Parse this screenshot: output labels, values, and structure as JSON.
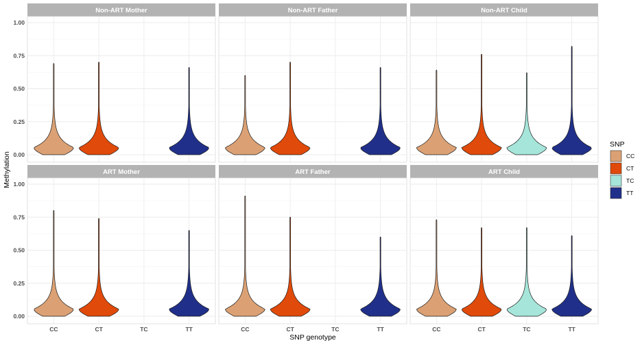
{
  "chart_data": {
    "type": "violin",
    "xlabel": "SNP genotype",
    "ylabel": "Methylation",
    "ylim": [
      0,
      1
    ],
    "y_ticks": [
      "0.00",
      "0.25",
      "0.50",
      "0.75",
      "1.00"
    ],
    "categories": [
      "CC",
      "CT",
      "TC",
      "TT"
    ],
    "legend": {
      "title": "SNP",
      "placement": "right",
      "entries": [
        "CC",
        "CT",
        "TC",
        "TT"
      ]
    },
    "colors": {
      "CC": "#DBA174",
      "CT": "#E04A0A",
      "TC": "#A6E5DA",
      "TT": "#20308A"
    },
    "panels": [
      {
        "title": "Non-ART Mother",
        "violins": [
          {
            "genotype": "CC",
            "max": 0.69
          },
          {
            "genotype": "CT",
            "max": 0.7
          },
          {
            "genotype": "TT",
            "max": 0.66
          }
        ]
      },
      {
        "title": "Non-ART Father",
        "violins": [
          {
            "genotype": "CC",
            "max": 0.6
          },
          {
            "genotype": "CT",
            "max": 0.7
          },
          {
            "genotype": "TT",
            "max": 0.66
          }
        ]
      },
      {
        "title": "Non-ART Child",
        "violins": [
          {
            "genotype": "CC",
            "max": 0.64
          },
          {
            "genotype": "CT",
            "max": 0.76
          },
          {
            "genotype": "TC",
            "max": 0.62
          },
          {
            "genotype": "TT",
            "max": 0.82
          }
        ]
      },
      {
        "title": "ART Mother",
        "violins": [
          {
            "genotype": "CC",
            "max": 0.8
          },
          {
            "genotype": "CT",
            "max": 0.74
          },
          {
            "genotype": "TT",
            "max": 0.65
          }
        ]
      },
      {
        "title": "ART Father",
        "violins": [
          {
            "genotype": "CC",
            "max": 0.91
          },
          {
            "genotype": "CT",
            "max": 0.75
          },
          {
            "genotype": "TT",
            "max": 0.6
          }
        ]
      },
      {
        "title": "ART Child",
        "violins": [
          {
            "genotype": "CC",
            "max": 0.73
          },
          {
            "genotype": "CT",
            "max": 0.67
          },
          {
            "genotype": "TC",
            "max": 0.67
          },
          {
            "genotype": "TT",
            "max": 0.61
          }
        ]
      }
    ]
  }
}
